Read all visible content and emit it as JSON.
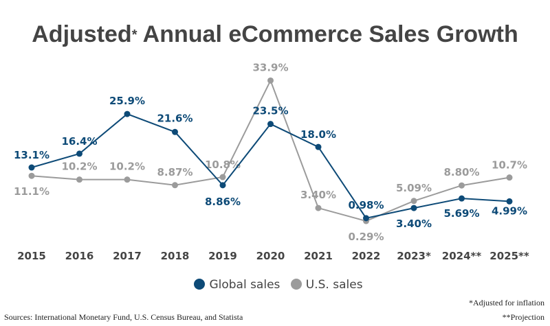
{
  "chart_data": {
    "type": "line",
    "title": "Adjusted",
    "title_asterisk": "*",
    "title_rest": " Annual eCommerce Sales Growth",
    "categories": [
      "2015",
      "2016",
      "2017",
      "2018",
      "2019",
      "2020",
      "2021",
      "2022",
      "2023*",
      "2024**",
      "2025**"
    ],
    "series": [
      {
        "name": "Global sales",
        "color": "#0d4a77",
        "values": [
          13.1,
          16.4,
          25.9,
          21.6,
          8.86,
          23.5,
          18.0,
          0.98,
          3.4,
          5.69,
          4.99
        ],
        "labels": [
          "13.1%",
          "16.4%",
          "25.9%",
          "21.6%",
          "8.86%",
          "23.5%",
          "18.0%",
          "0.98%",
          "3.40%",
          "5.69%",
          "4.99%"
        ]
      },
      {
        "name": "U.S. sales",
        "color": "#9b9b9b",
        "values": [
          11.1,
          10.2,
          10.2,
          8.87,
          10.8,
          33.9,
          3.4,
          0.29,
          5.09,
          8.8,
          10.7
        ],
        "labels": [
          "11.1%",
          "10.2%",
          "10.2%",
          "8.87%",
          "10.8%",
          "33.9%",
          "3.40%",
          "0.29%",
          "5.09%",
          "8.80%",
          "10.7%"
        ]
      }
    ],
    "xlabel": "",
    "ylabel": "",
    "grid": false,
    "legend": "bottom"
  },
  "footnotes": {
    "sources": "Sources: International Monetary Fund, U.S. Census Bureau, and Statista",
    "adjusted": "*Adjusted for inflation",
    "projection": "**Projection"
  }
}
